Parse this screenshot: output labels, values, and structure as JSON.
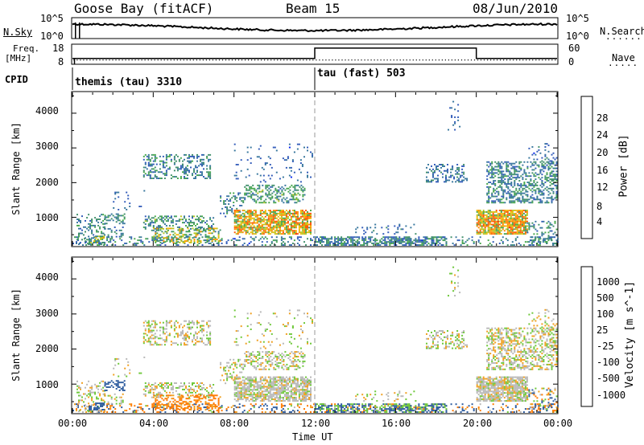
{
  "header": {
    "station": "Goose Bay (fitACF)",
    "beam": "Beam 15",
    "date": "08/Jun/2010"
  },
  "left_labels": {
    "nsky": "N.Sky",
    "freq_line1": "Freq.",
    "freq_line2": "[MHz]",
    "cpid": "CPID"
  },
  "right_labels": {
    "nsearch": "N.Search",
    "nave": "Nave"
  },
  "nsky_ticks": [
    "10^5",
    "10^0"
  ],
  "nsearch_ticks": [
    "10^5",
    "10^0"
  ],
  "freq_ticks": [
    "18",
    "8"
  ],
  "nave_ticks": [
    "60",
    "0"
  ],
  "cpid_segments": [
    {
      "label": "themis (tau) 3310",
      "start_hour": 0,
      "end_hour": 12
    },
    {
      "label": "tau (fast) 503",
      "start_hour": 12,
      "end_hour": 24
    }
  ],
  "x_axis": {
    "label": "Time UT",
    "ticks": [
      "00:00",
      "04:00",
      "08:00",
      "12:00",
      "16:00",
      "20:00",
      "00:00"
    ]
  },
  "panels": [
    {
      "ylabel": "Slant Range [km]",
      "yticks": [
        "1000",
        "2000",
        "3000",
        "4000"
      ],
      "colorbar_label": "Power [dB]",
      "colorbar_ticks": [
        "4",
        "8",
        "12",
        "16",
        "20",
        "24",
        "28"
      ],
      "colors": [
        "#0022ee",
        "#2f59b8",
        "#35759c",
        "#3f8f6a",
        "#44a64a",
        "#b8c41a",
        "#f0b800",
        "#ff8800",
        "#ff5500",
        "#ee1100"
      ]
    },
    {
      "ylabel": "Slant Range [km]",
      "yticks": [
        "1000",
        "2000",
        "3000",
        "4000"
      ],
      "colorbar_label": "Velocity [m s^-1]",
      "colorbar_ticks": [
        "1000",
        "500",
        "100",
        "25",
        "-25",
        "-100",
        "-500",
        "-1000"
      ],
      "colors": [
        "#1a2fb0",
        "#2e5c9f",
        "#3f8a6c",
        "#6ec83a",
        "#b8b8b8",
        "#b8b8b8",
        "#f0a020",
        "#ff7a00",
        "#ff3000",
        "#e80000"
      ]
    }
  ],
  "chart_data": {
    "type": "heatmap",
    "x_unit": "hour UT",
    "x_range": [
      0,
      24
    ],
    "y_unit": "km",
    "y_range": [
      180,
      4600
    ],
    "params": [
      "Power [dB]",
      "Velocity [m s^-1]"
    ],
    "power_range_db": [
      0,
      31
    ],
    "velocity_range": [
      -1000,
      1000
    ],
    "frequency_mhz": 10,
    "nave_levels": [
      {
        "start_hour": 0,
        "end_hour": 12,
        "value": 17
      },
      {
        "start_hour": 12,
        "end_hour": 20,
        "value": 52
      },
      {
        "start_hour": 20,
        "end_hour": 24,
        "value": 17
      }
    ],
    "echo_regions": [
      {
        "t": [
          0.0,
          24.0
        ],
        "r": [
          180,
          420
        ],
        "density": 0.22,
        "power": [
          3,
          14
        ],
        "vel": [
          -500,
          500
        ]
      },
      {
        "t": [
          0.2,
          1.6
        ],
        "r": [
          200,
          1100
        ],
        "density": 0.3,
        "power": [
          4,
          14
        ],
        "vel": [
          -60,
          60
        ]
      },
      {
        "t": [
          0.8,
          1.6
        ],
        "r": [
          250,
          450
        ],
        "density": 0.55,
        "power": [
          8,
          20
        ],
        "vel": [
          100,
          400
        ]
      },
      {
        "t": [
          1.5,
          2.6
        ],
        "r": [
          800,
          1100
        ],
        "density": 0.45,
        "power": [
          6,
          14
        ],
        "vel": [
          100,
          400
        ]
      },
      {
        "t": [
          1.5,
          2.6
        ],
        "r": [
          420,
          700
        ],
        "density": 0.25,
        "power": [
          4,
          12
        ],
        "vel": [
          -60,
          60
        ]
      },
      {
        "t": [
          2.0,
          3.8
        ],
        "r": [
          1200,
          1800
        ],
        "density": 0.07,
        "power": [
          3,
          9
        ],
        "vel": [
          -60,
          60
        ]
      },
      {
        "t": [
          3.5,
          6.8
        ],
        "r": [
          2100,
          2800
        ],
        "density": 0.3,
        "power": [
          4,
          14
        ],
        "vel": [
          -60,
          60
        ]
      },
      {
        "t": [
          3.5,
          7.0
        ],
        "r": [
          600,
          1050
        ],
        "density": 0.4,
        "power": [
          5,
          16
        ],
        "vel": [
          -60,
          60
        ]
      },
      {
        "t": [
          4.0,
          7.3
        ],
        "r": [
          250,
          700
        ],
        "density": 0.4,
        "power": [
          8,
          24
        ],
        "vel": [
          -300,
          -40
        ]
      },
      {
        "t": [
          7.3,
          8.5
        ],
        "r": [
          1000,
          1700
        ],
        "density": 0.25,
        "power": [
          4,
          14
        ],
        "vel": [
          -60,
          60
        ]
      },
      {
        "t": [
          8.0,
          11.8
        ],
        "r": [
          500,
          1200
        ],
        "density": 0.7,
        "power": [
          12,
          28
        ],
        "vel": [
          -40,
          40
        ]
      },
      {
        "t": [
          8.5,
          11.5
        ],
        "r": [
          1400,
          1900
        ],
        "density": 0.35,
        "power": [
          6,
          16
        ],
        "vel": [
          -60,
          60
        ]
      },
      {
        "t": [
          8.0,
          12.0
        ],
        "r": [
          2000,
          3100
        ],
        "density": 0.06,
        "power": [
          3,
          9
        ],
        "vel": [
          -60,
          60
        ]
      },
      {
        "t": [
          12.0,
          18.5
        ],
        "r": [
          180,
          450
        ],
        "density": 0.5,
        "power": [
          3,
          14
        ],
        "vel": [
          20,
          200
        ]
      },
      {
        "t": [
          14.0,
          17.0
        ],
        "r": [
          500,
          800
        ],
        "density": 0.1,
        "power": [
          3,
          10
        ],
        "vel": [
          -60,
          60
        ]
      },
      {
        "t": [
          17.5,
          19.5
        ],
        "r": [
          2000,
          2500
        ],
        "density": 0.35,
        "power": [
          4,
          12
        ],
        "vel": [
          -60,
          60
        ]
      },
      {
        "t": [
          18.5,
          19.2
        ],
        "r": [
          3500,
          4400
        ],
        "density": 0.08,
        "power": [
          3,
          9
        ],
        "vel": [
          -60,
          60
        ]
      },
      {
        "t": [
          20.0,
          22.5
        ],
        "r": [
          500,
          1200
        ],
        "density": 0.8,
        "power": [
          12,
          28
        ],
        "vel": [
          -40,
          40
        ]
      },
      {
        "t": [
          20.5,
          24.0
        ],
        "r": [
          1400,
          2600
        ],
        "density": 0.45,
        "power": [
          4,
          14
        ],
        "vel": [
          -60,
          60
        ]
      },
      {
        "t": [
          22.5,
          24.0
        ],
        "r": [
          2600,
          3100
        ],
        "density": 0.15,
        "power": [
          3,
          10
        ],
        "vel": [
          -60,
          60
        ]
      },
      {
        "t": [
          22.5,
          24.0
        ],
        "r": [
          180,
          900
        ],
        "density": 0.25,
        "power": [
          4,
          16
        ],
        "vel": [
          -200,
          200
        ]
      }
    ]
  }
}
